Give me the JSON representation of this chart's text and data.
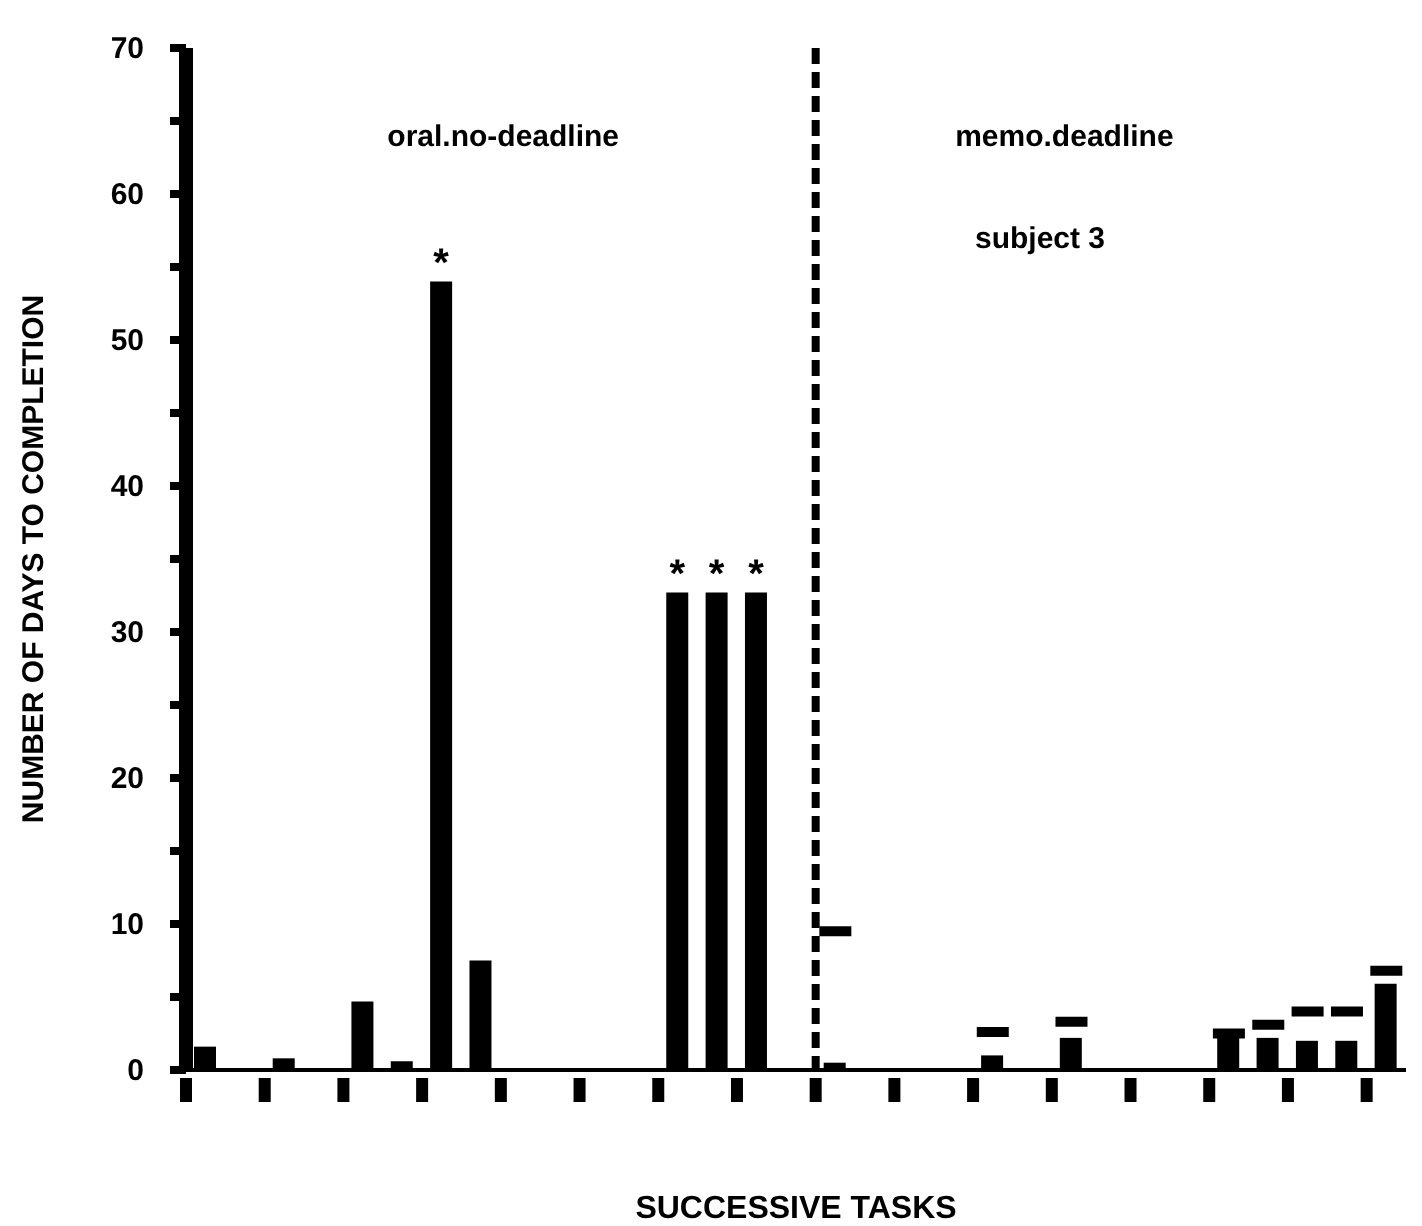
{
  "chart_data": {
    "type": "bar",
    "xlabel": "SUCCESSIVE TASKS",
    "ylabel": "NUMBER OF DAYS TO COMPLETION",
    "annotations": [
      "oral.no-deadline",
      "memo.deadline",
      "subject 3"
    ],
    "categories": [
      null,
      null,
      null,
      null,
      null,
      null,
      null,
      null,
      null,
      null,
      null,
      null,
      null,
      null,
      null,
      null,
      null,
      null,
      null,
      null,
      null,
      null,
      null,
      null,
      null,
      null,
      null,
      null,
      null,
      null,
      null
    ],
    "series": [
      {
        "color": "#000000",
        "values": [
          1.6,
          null,
          0.8,
          null,
          4.7,
          0.6,
          54,
          7.5,
          null,
          null,
          null,
          null,
          32.7,
          32.7,
          32.7,
          null,
          0.5,
          null,
          null,
          null,
          1,
          null,
          2.2,
          null,
          null,
          null,
          2.2,
          2.2,
          2,
          2,
          5.9
        ],
        "value_labels": [
          null,
          null,
          null,
          null,
          null,
          null,
          "*",
          null,
          null,
          null,
          null,
          null,
          "*",
          "*",
          "*",
          null,
          null,
          null,
          null,
          null,
          null,
          null,
          null,
          null,
          null,
          null,
          null,
          null,
          null,
          null,
          null
        ]
      },
      {
        "type": "scatter",
        "color": "#000000",
        "values": [
          null,
          null,
          null,
          null,
          null,
          null,
          null,
          null,
          null,
          null,
          null,
          null,
          null,
          null,
          null,
          null,
          9.5,
          null,
          null,
          null,
          2.6,
          null,
          3.3,
          null,
          null,
          null,
          2.5,
          3.1,
          4,
          4,
          6.8
        ]
      }
    ],
    "ylim": [
      0,
      70
    ],
    "yticks": [
      0,
      {
        "value": 5,
        "label": null
      },
      10,
      {
        "value": 15,
        "label": null
      },
      20,
      {
        "value": 25,
        "label": null
      },
      30,
      {
        "value": 35,
        "label": null
      },
      40,
      {
        "value": 45,
        "label": null
      },
      50,
      {
        "value": 55,
        "label": null
      },
      60,
      {
        "value": 65,
        "label": null
      },
      70
    ],
    "grid": false,
    "legend": false
  }
}
